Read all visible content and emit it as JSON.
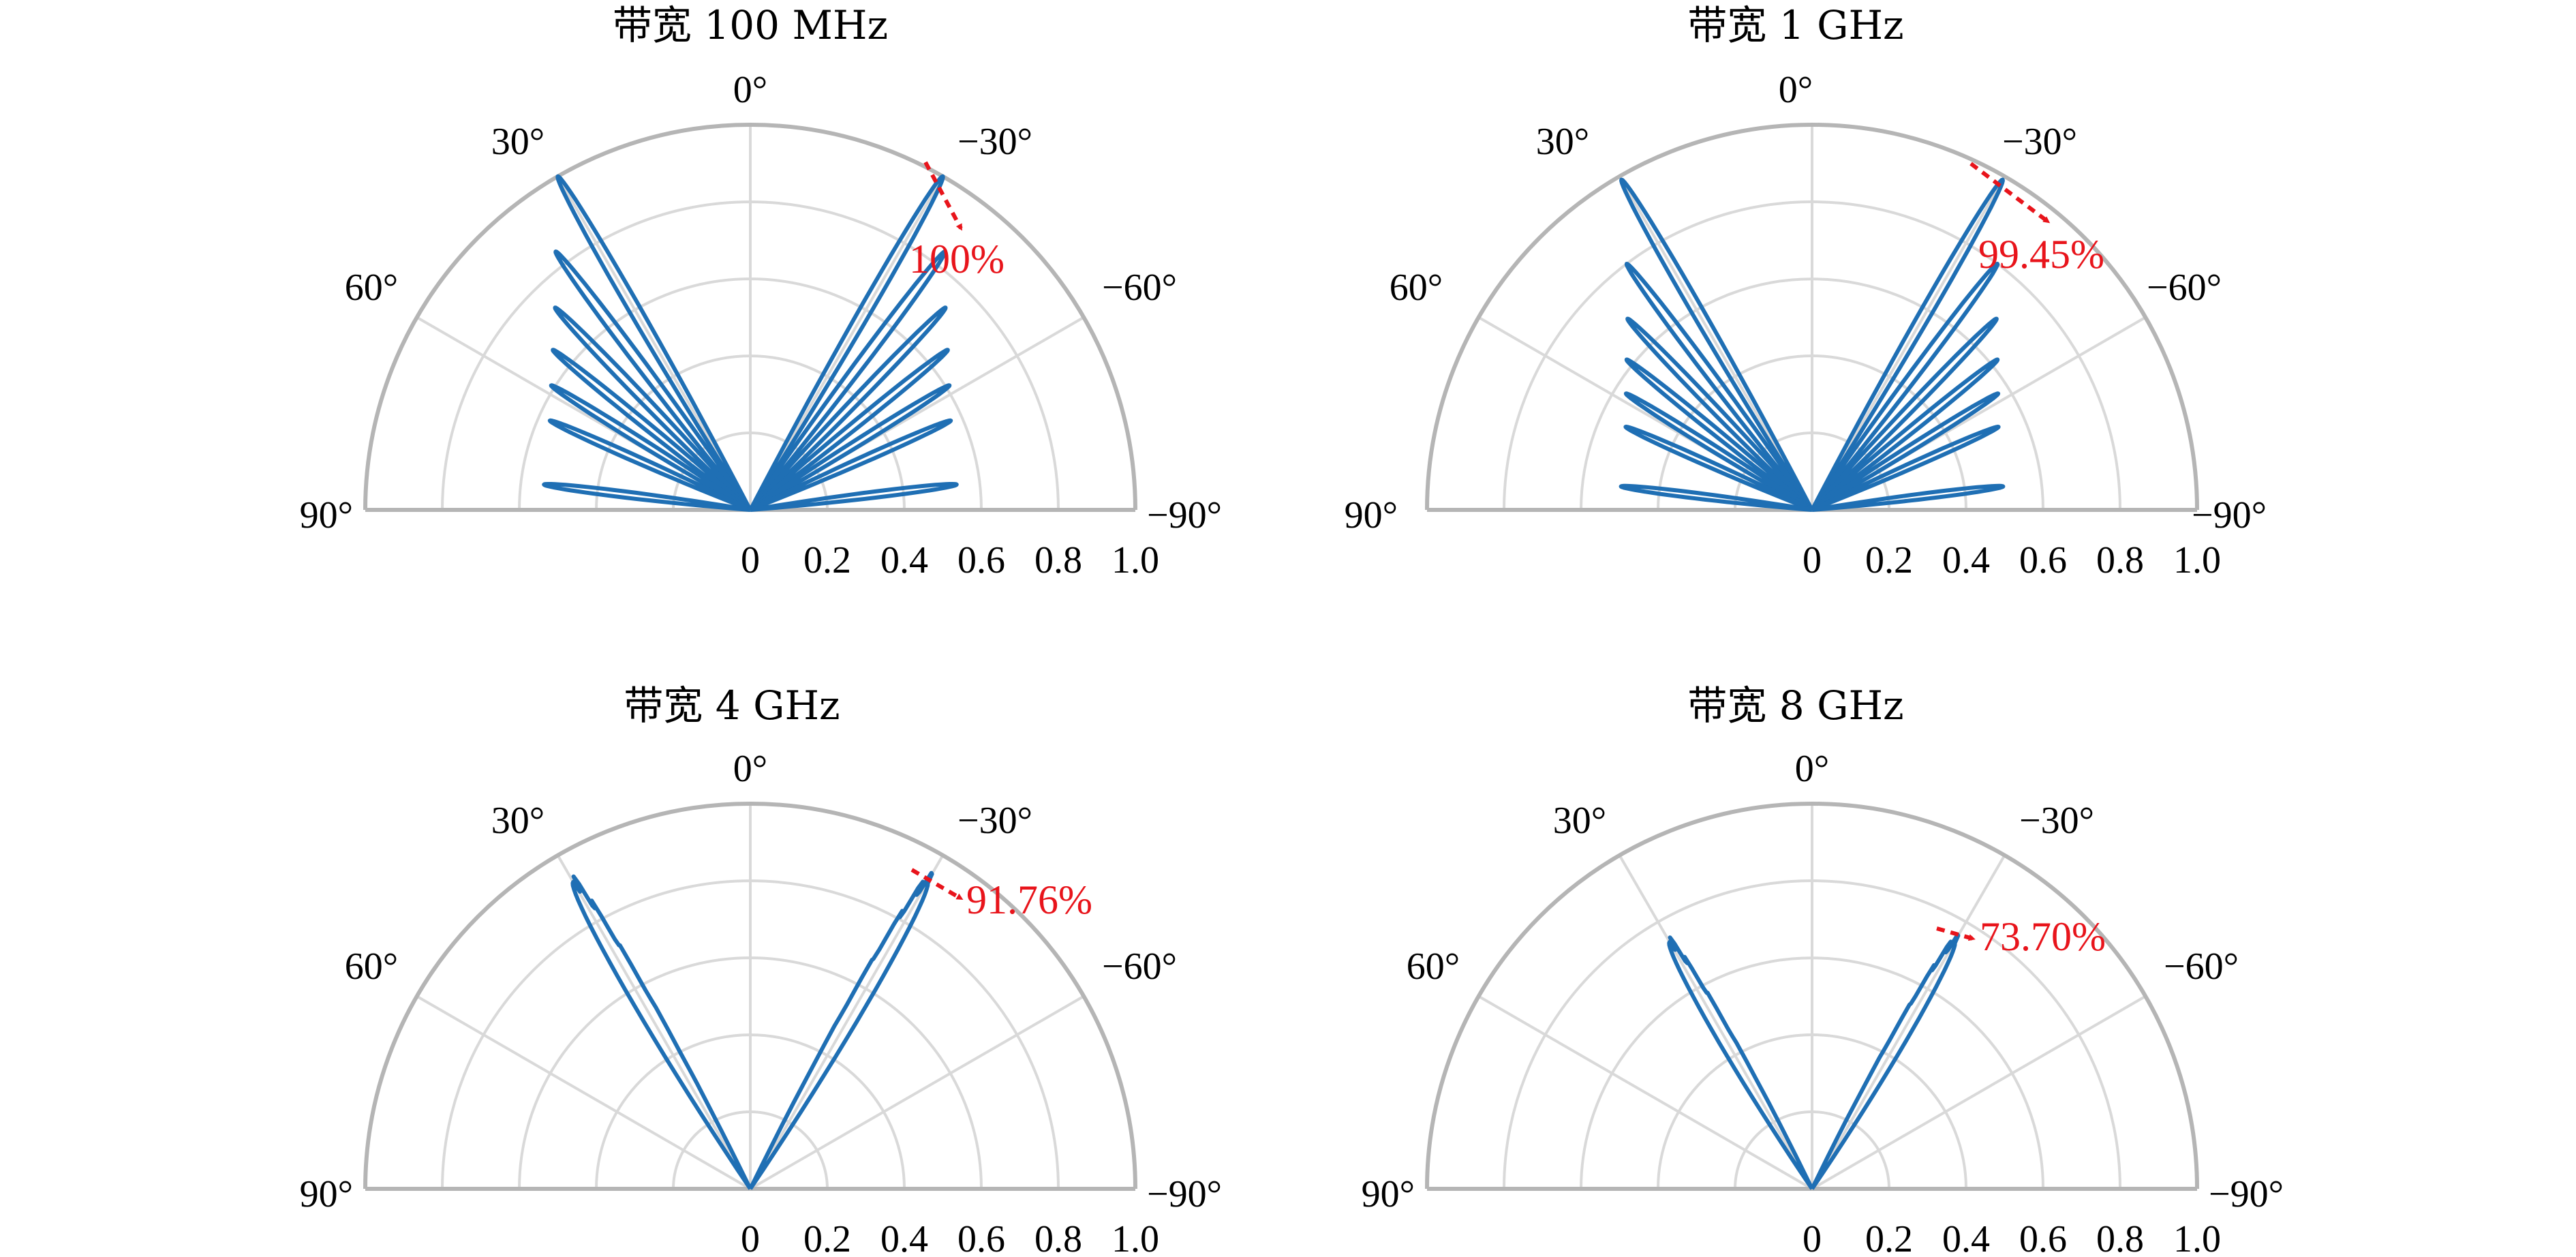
{
  "chart_data": [
    {
      "type": "polar",
      "title": "带宽 100 MHz",
      "theta_tick_labels": [
        "0°",
        "30°",
        "−30°",
        "60°",
        "−60°",
        "90°",
        "−90°"
      ],
      "r_tick_labels": [
        "0",
        "0.2",
        "0.4",
        "0.6",
        "0.8",
        "1.0"
      ],
      "rlim": [
        0,
        1.0
      ],
      "thetalim_deg": [
        -90,
        90
      ],
      "grid": true,
      "series": [
        {
          "lobes": [
            {
              "angle_deg": -30,
              "peak": 1.0
            },
            {
              "angle_deg": -37,
              "peak": 0.84
            },
            {
              "angle_deg": -44,
              "peak": 0.73
            },
            {
              "angle_deg": -51,
              "peak": 0.66
            },
            {
              "angle_deg": -58,
              "peak": 0.61
            },
            {
              "angle_deg": -66,
              "peak": 0.57
            },
            {
              "angle_deg": -83,
              "peak": 0.54
            },
            {
              "angle_deg": 30,
              "peak": 1.0
            },
            {
              "angle_deg": 37,
              "peak": 0.84
            },
            {
              "angle_deg": 44,
              "peak": 0.73
            },
            {
              "angle_deg": 51,
              "peak": 0.66
            },
            {
              "angle_deg": 58,
              "peak": 0.61
            },
            {
              "angle_deg": 66,
              "peak": 0.57
            },
            {
              "angle_deg": 83,
              "peak": 0.54
            }
          ]
        }
      ],
      "annotation": {
        "text": "100%",
        "angle_deg": -30,
        "r": 1.0
      },
      "colors": {
        "series": "#1f6fb4",
        "annotation": "#e8141b"
      }
    },
    {
      "type": "polar",
      "title": "带宽 1 GHz",
      "theta_tick_labels": [
        "0°",
        "30°",
        "−30°",
        "60°",
        "−60°",
        "90°",
        "−90°"
      ],
      "r_tick_labels": [
        "0",
        "0.2",
        "0.4",
        "0.6",
        "0.8",
        "1.0"
      ],
      "rlim": [
        0,
        1.0
      ],
      "thetalim_deg": [
        -90,
        90
      ],
      "grid": true,
      "series": [
        {
          "lobes": [
            {
              "angle_deg": -30,
              "peak": 0.99
            },
            {
              "angle_deg": -37,
              "peak": 0.8
            },
            {
              "angle_deg": -44,
              "peak": 0.69
            },
            {
              "angle_deg": -51,
              "peak": 0.62
            },
            {
              "angle_deg": -58,
              "peak": 0.57
            },
            {
              "angle_deg": -66,
              "peak": 0.53
            },
            {
              "angle_deg": -83,
              "peak": 0.5
            },
            {
              "angle_deg": 30,
              "peak": 0.99
            },
            {
              "angle_deg": 37,
              "peak": 0.8
            },
            {
              "angle_deg": 44,
              "peak": 0.69
            },
            {
              "angle_deg": 51,
              "peak": 0.62
            },
            {
              "angle_deg": 58,
              "peak": 0.57
            },
            {
              "angle_deg": 66,
              "peak": 0.53
            },
            {
              "angle_deg": 83,
              "peak": 0.5
            }
          ]
        }
      ],
      "annotation": {
        "text": "99.45%",
        "angle_deg": -30,
        "r": 0.99
      },
      "colors": {
        "series": "#1f6fb4",
        "annotation": "#e8141b"
      }
    },
    {
      "type": "polar",
      "title": "带宽 4 GHz",
      "theta_tick_labels": [
        "0°",
        "30°",
        "−30°",
        "60°",
        "−60°",
        "90°",
        "−90°"
      ],
      "r_tick_labels": [
        "0",
        "0.2",
        "0.4",
        "0.6",
        "0.8",
        "1.0"
      ],
      "rlim": [
        0,
        1.0
      ],
      "thetalim_deg": [
        -90,
        90
      ],
      "grid": true,
      "series": [
        {
          "lobes": [
            {
              "angle_deg": -30,
              "peak": 0.92
            },
            {
              "angle_deg": 30,
              "peak": 0.92
            }
          ]
        }
      ],
      "annotation": {
        "text": "91.76%",
        "angle_deg": -30,
        "r": 0.92
      },
      "colors": {
        "series": "#1f6fb4",
        "annotation": "#e8141b"
      }
    },
    {
      "type": "polar",
      "title": "带宽 8 GHz",
      "theta_tick_labels": [
        "0°",
        "30°",
        "−30°",
        "60°",
        "−60°",
        "90°",
        "−90°"
      ],
      "r_tick_labels": [
        "0",
        "0.2",
        "0.4",
        "0.6",
        "0.8",
        "1.0"
      ],
      "rlim": [
        0,
        1.0
      ],
      "thetalim_deg": [
        -90,
        90
      ],
      "grid": true,
      "series": [
        {
          "lobes": [
            {
              "angle_deg": -30,
              "peak": 0.74
            },
            {
              "angle_deg": 30,
              "peak": 0.74
            }
          ]
        }
      ],
      "annotation": {
        "text": "73.70%",
        "angle_deg": -30,
        "r": 0.74
      },
      "colors": {
        "series": "#1f6fb4",
        "annotation": "#e8141b"
      }
    }
  ]
}
